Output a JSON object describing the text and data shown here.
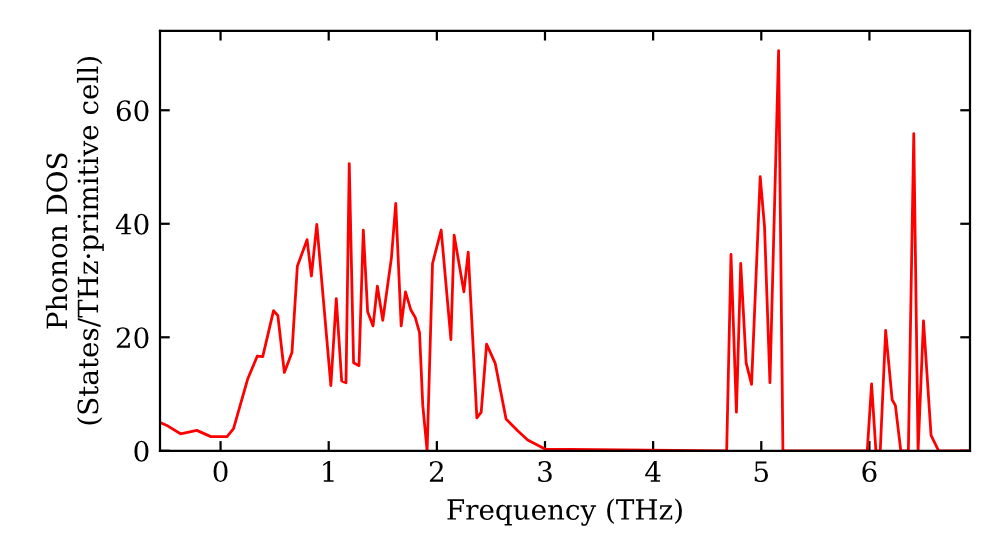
{
  "chart_data": {
    "type": "line",
    "xlabel": "Frequency (THz)",
    "ylabel": "Phonon DOS\n(States/THz·primitive cell)",
    "xlim": [
      -0.56,
      6.93
    ],
    "ylim": [
      0,
      74
    ],
    "xticks": [
      0,
      1,
      2,
      3,
      4,
      5,
      6
    ],
    "yticks": [
      0,
      20,
      40,
      60
    ],
    "grid": false,
    "legend": false,
    "marker": "none",
    "line_style": "solid",
    "series": [
      {
        "color": "#ff0000",
        "x": [
          -0.56,
          -0.49,
          -0.37,
          -0.22,
          -0.09,
          0.06,
          0.12,
          0.25,
          0.34,
          0.39,
          0.49,
          0.53,
          0.59,
          0.66,
          0.71,
          0.8,
          0.84,
          0.89,
          1.02,
          1.07,
          1.12,
          1.16,
          1.19,
          1.23,
          1.28,
          1.32,
          1.36,
          1.41,
          1.45,
          1.5,
          1.58,
          1.62,
          1.67,
          1.71,
          1.76,
          1.8,
          1.84,
          1.87,
          1.91,
          1.96,
          2.04,
          2.13,
          2.16,
          2.25,
          2.29,
          2.37,
          2.41,
          2.46,
          2.54,
          2.64,
          2.75,
          2.84,
          3.0,
          4.68,
          4.72,
          4.77,
          4.81,
          4.86,
          4.91,
          4.99,
          5.03,
          5.08,
          5.16,
          5.2,
          5.98,
          6.02,
          6.06,
          6.1,
          6.15,
          6.21,
          6.24,
          6.29,
          6.36,
          6.41,
          6.45,
          6.5,
          6.57,
          6.64,
          6.93
        ],
        "values": [
          5.0,
          4.4,
          3.0,
          3.6,
          2.5,
          2.5,
          3.9,
          12.6,
          16.7,
          16.6,
          24.7,
          23.8,
          13.8,
          17.3,
          32.5,
          37.2,
          30.8,
          39.9,
          11.5,
          26.8,
          12.3,
          12,
          50.6,
          15.5,
          15,
          38.9,
          24.5,
          22,
          29,
          23,
          34,
          43.6,
          22,
          28,
          24.8,
          23.5,
          20.8,
          8,
          0,
          33,
          38.9,
          19.6,
          38,
          28,
          35,
          5.8,
          6.8,
          18.8,
          15.4,
          5.6,
          3.5,
          1.9,
          0.3,
          0,
          34.6,
          6.8,
          33,
          15.5,
          11.7,
          48.3,
          39.5,
          12,
          70.5,
          0,
          0,
          11.8,
          0,
          0,
          21.2,
          9,
          8,
          0,
          0,
          55.9,
          0,
          22.9,
          2.7,
          0,
          0
        ]
      }
    ]
  }
}
